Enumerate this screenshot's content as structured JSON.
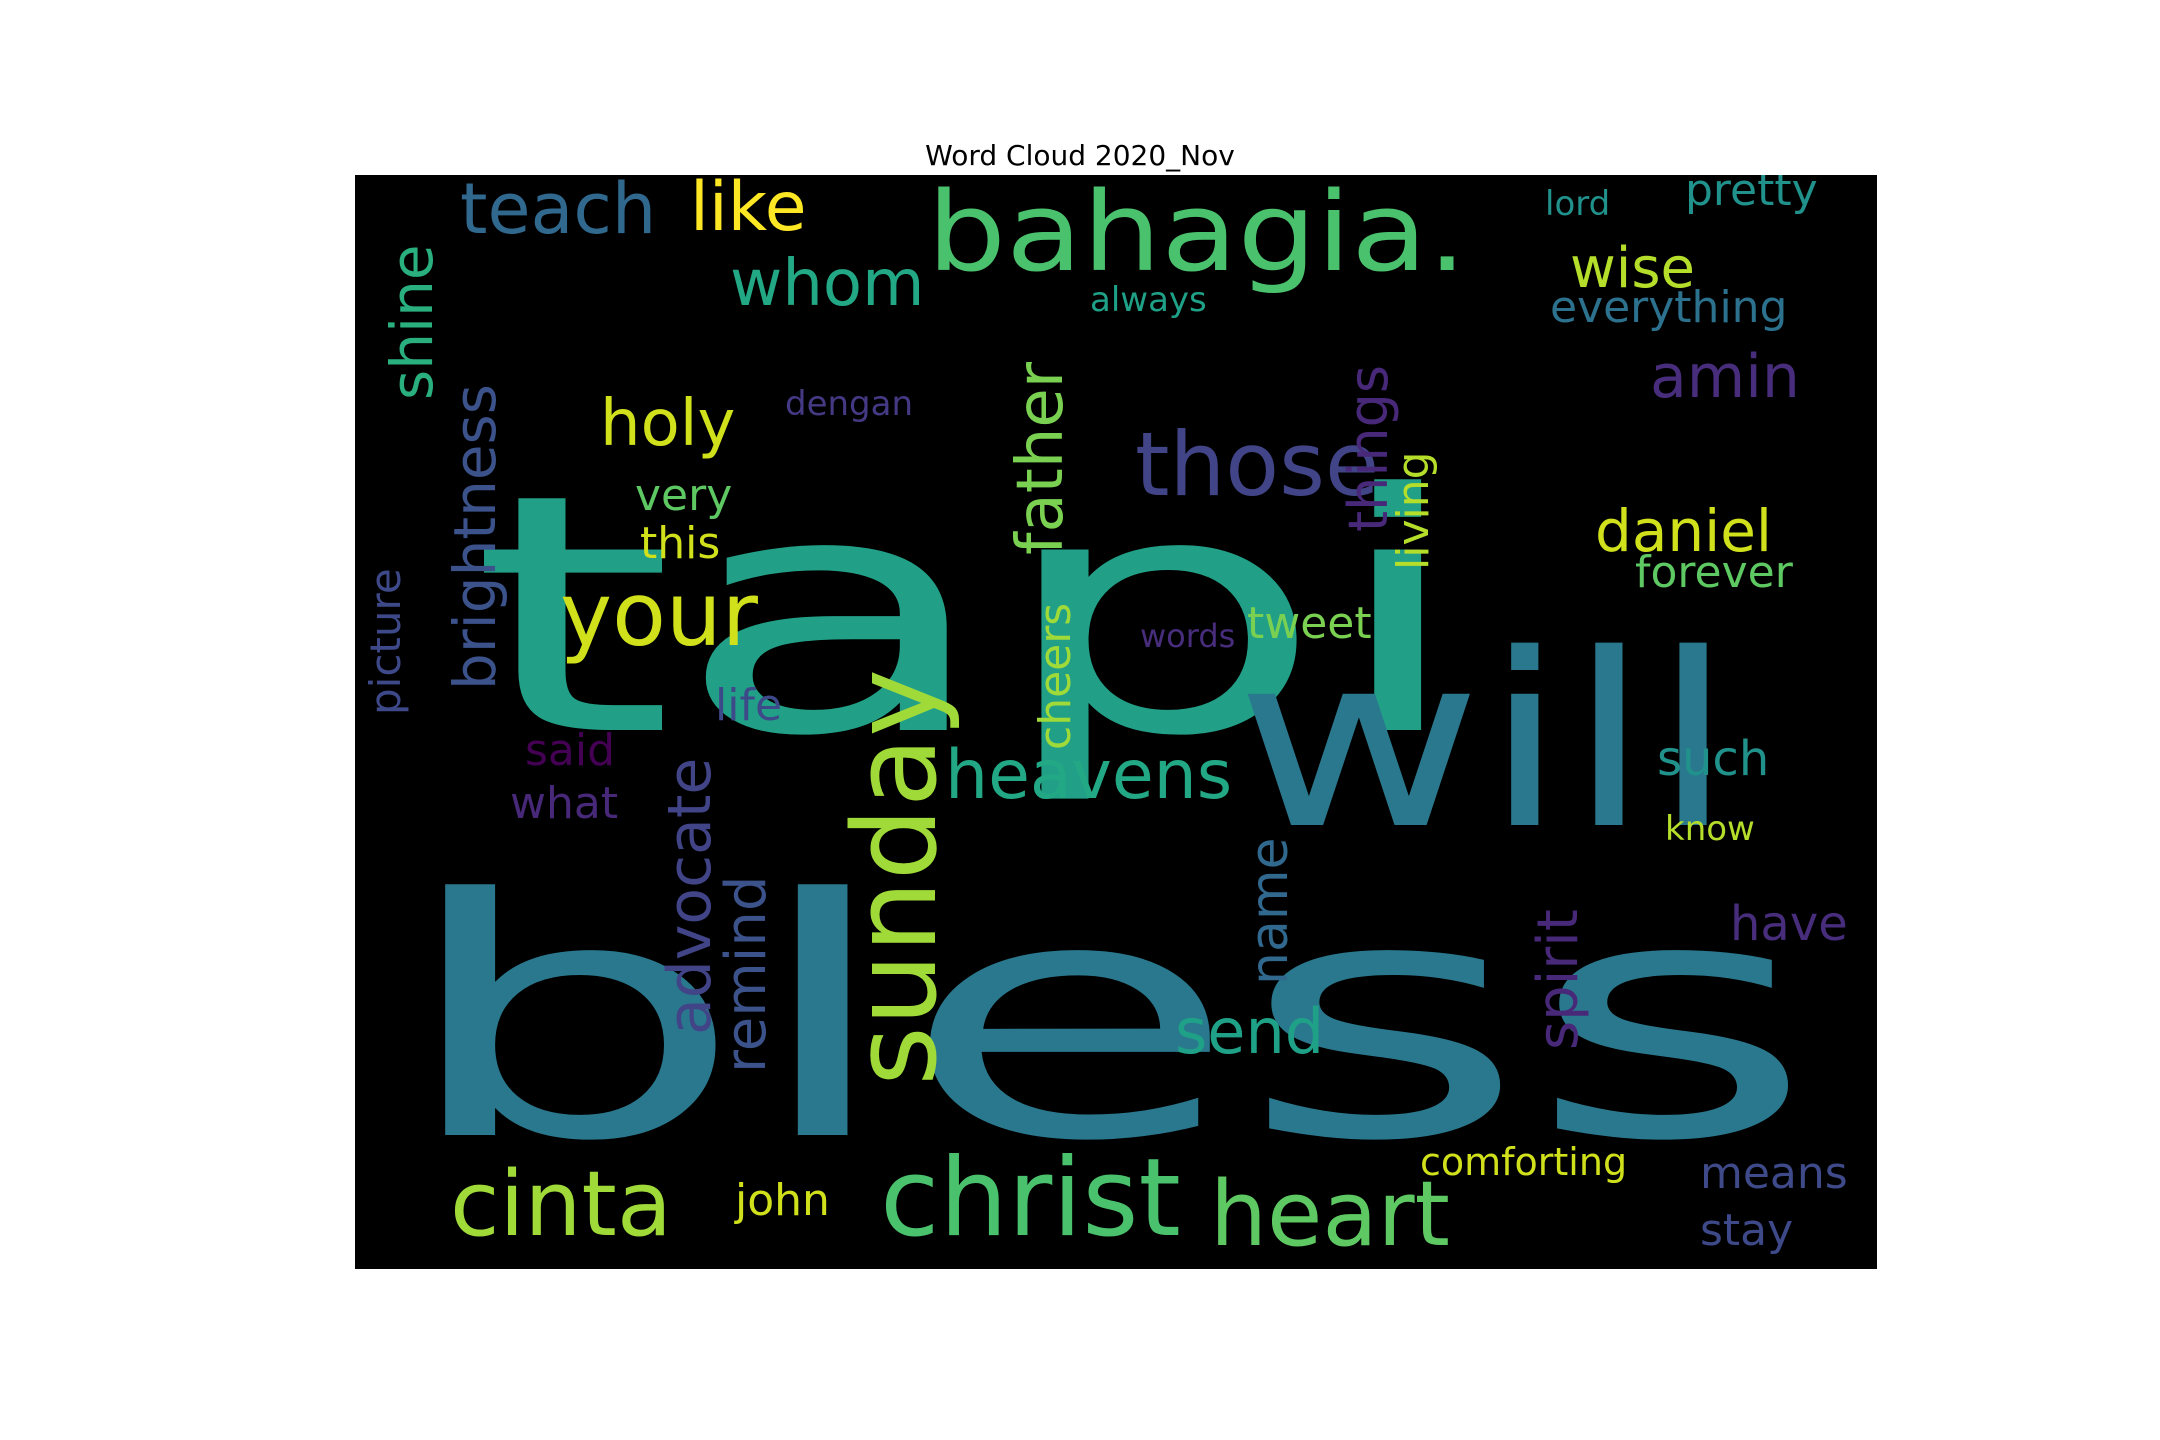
{
  "figure": {
    "title": "Word Cloud 2020_Nov",
    "background": "#000000",
    "colormap": "viridis"
  },
  "words": [
    {
      "text": "bless",
      "color": "#2a788e"
    },
    {
      "text": "tapi",
      "color": "#21a087"
    },
    {
      "text": "will",
      "color": "#2a788e"
    },
    {
      "text": "bahagia.",
      "color": "#4ac16d"
    },
    {
      "text": "sunday",
      "color": "#a0da39"
    },
    {
      "text": "christ",
      "color": "#4ac16d"
    },
    {
      "text": "heart",
      "color": "#5ec962"
    },
    {
      "text": "cinta",
      "color": "#a0da39"
    },
    {
      "text": "your",
      "color": "#d0e11c"
    },
    {
      "text": "those",
      "color": "#414487"
    },
    {
      "text": "heavens",
      "color": "#22a884"
    },
    {
      "text": "father",
      "color": "#7ad151"
    },
    {
      "text": "teach",
      "color": "#31688e"
    },
    {
      "text": "like",
      "color": "#fde725"
    },
    {
      "text": "whom",
      "color": "#22a884"
    },
    {
      "text": "shine",
      "color": "#2ab07f"
    },
    {
      "text": "brightness",
      "color": "#3b528b"
    },
    {
      "text": "holy",
      "color": "#d0e11c"
    },
    {
      "text": "advocate",
      "color": "#414487"
    },
    {
      "text": "remind",
      "color": "#3b528b"
    },
    {
      "text": "send",
      "color": "#1fa187"
    },
    {
      "text": "spirit",
      "color": "#482878"
    },
    {
      "text": "name",
      "color": "#31688e"
    },
    {
      "text": "daniel",
      "color": "#d0e11c"
    },
    {
      "text": "amin",
      "color": "#472d7b"
    },
    {
      "text": "wise",
      "color": "#b5de2b"
    },
    {
      "text": "things",
      "color": "#482878"
    },
    {
      "text": "pretty",
      "color": "#21918c"
    },
    {
      "text": "everything",
      "color": "#2c728e"
    },
    {
      "text": "forever",
      "color": "#5ec962"
    },
    {
      "text": "such",
      "color": "#21918c"
    },
    {
      "text": "have",
      "color": "#472d7b"
    },
    {
      "text": "means",
      "color": "#3e4a89"
    },
    {
      "text": "stay",
      "color": "#3e4989"
    },
    {
      "text": "cheers",
      "color": "#a0da39"
    },
    {
      "text": "living",
      "color": "#b5de2b"
    },
    {
      "text": "tweet",
      "color": "#7ad151"
    },
    {
      "text": "john",
      "color": "#d0e11c"
    },
    {
      "text": "comforting",
      "color": "#d0e11c"
    },
    {
      "text": "picture",
      "color": "#3e4989"
    },
    {
      "text": "life",
      "color": "#3e4989"
    },
    {
      "text": "said",
      "color": "#440154"
    },
    {
      "text": "what",
      "color": "#482878"
    },
    {
      "text": "very",
      "color": "#5ec962"
    },
    {
      "text": "this",
      "color": "#d0e11c"
    },
    {
      "text": "dengan",
      "color": "#443983"
    },
    {
      "text": "always",
      "color": "#1fa187"
    },
    {
      "text": "lord",
      "color": "#21918c"
    },
    {
      "text": "words",
      "color": "#472d7b"
    },
    {
      "text": "know",
      "color": "#b5de2b"
    }
  ]
}
